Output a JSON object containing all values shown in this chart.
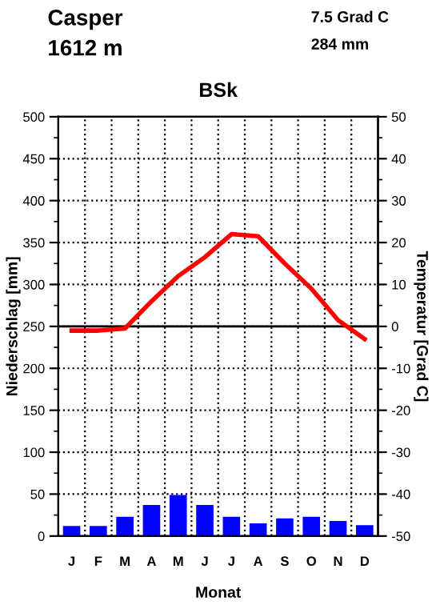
{
  "chart_data": {
    "type": "bar",
    "title": "BSk",
    "xlabel": "Monat",
    "ylabel": "Niederschlag [mm]",
    "y2label": "Temperatur [Grad C]",
    "annotations": [
      "Casper",
      "1612 m",
      "7.5 Grad C",
      "284 mm"
    ],
    "categories": [
      "J",
      "F",
      "M",
      "A",
      "M",
      "J",
      "J",
      "A",
      "S",
      "O",
      "N",
      "D"
    ],
    "series": [
      {
        "color": "#0000ff",
        "values": [
          12,
          12,
          23,
          37,
          49,
          37,
          23,
          15,
          21,
          23,
          18,
          13
        ]
      },
      {
        "type": "line",
        "axis": "y2",
        "color": "#ff0000",
        "values": [
          -1,
          -1,
          -0.5,
          6,
          12,
          16.5,
          22,
          21.5,
          15,
          9,
          1.5,
          -3
        ]
      }
    ],
    "ylim": [
      0,
      500
    ],
    "yticks": [
      0,
      50,
      100,
      150,
      200,
      250,
      300,
      350,
      400,
      450,
      500
    ],
    "y2lim": [
      -50,
      50
    ],
    "y2ticks": [
      -50,
      -40,
      -30,
      -20,
      -10,
      0,
      10,
      20,
      30,
      40,
      50
    ],
    "ref_lines": [
      {
        "axis": "y2",
        "value": 0,
        "color": "#000000",
        "line_style": "solid"
      }
    ],
    "grid": true,
    "legend": false
  }
}
